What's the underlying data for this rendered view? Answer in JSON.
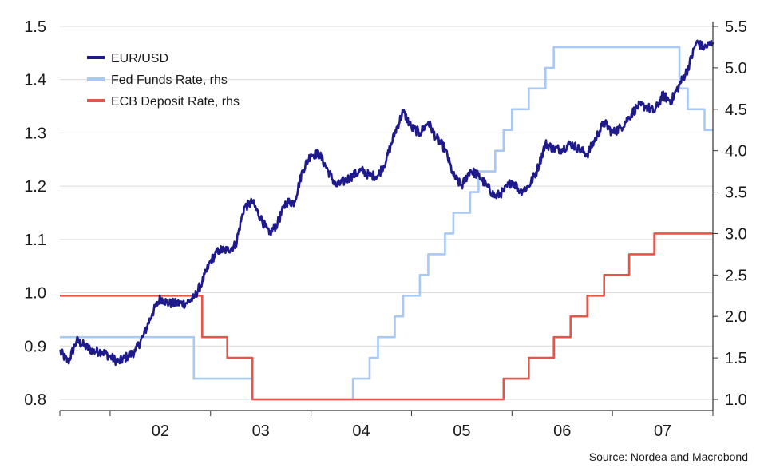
{
  "chart_data": {
    "type": "line",
    "source": "Source: Nordea and Macrobond",
    "x_axis": {
      "tick_labels": [
        "02",
        "03",
        "04",
        "05",
        "06",
        "07"
      ],
      "range_years": [
        2001.5,
        2008.0
      ]
    },
    "y_axis_left": {
      "ylim": [
        0.8,
        1.5
      ],
      "tick_labels": [
        "0.8",
        "0.9",
        "1.0",
        "1.1",
        "1.2",
        "1.3",
        "1.4",
        "1.5"
      ]
    },
    "y_axis_right": {
      "ylim": [
        1.0,
        5.5
      ],
      "tick_labels": [
        "1.0",
        "1.5",
        "2.0",
        "2.5",
        "3.0",
        "3.5",
        "4.0",
        "4.5",
        "5.0",
        "5.5"
      ]
    },
    "grid": "horizontal",
    "legend_position": "top-left",
    "series": [
      {
        "name": "EUR/USD",
        "axis": "left",
        "color": "#1f1a8c",
        "points": [
          [
            "2001-07",
            0.89
          ],
          [
            "2001-08",
            0.87
          ],
          [
            "2001-09",
            0.91
          ],
          [
            "2001-10",
            0.9
          ],
          [
            "2001-11",
            0.89
          ],
          [
            "2001-12",
            0.89
          ],
          [
            "2002-01",
            0.88
          ],
          [
            "2002-02",
            0.87
          ],
          [
            "2002-03",
            0.88
          ],
          [
            "2002-04",
            0.89
          ],
          [
            "2002-05",
            0.92
          ],
          [
            "2002-06",
            0.96
          ],
          [
            "2002-07",
            0.99
          ],
          [
            "2002-08",
            0.98
          ],
          [
            "2002-09",
            0.98
          ],
          [
            "2002-10",
            0.98
          ],
          [
            "2002-11",
            0.99
          ],
          [
            "2002-12",
            1.02
          ],
          [
            "2003-01",
            1.06
          ],
          [
            "2003-02",
            1.08
          ],
          [
            "2003-03",
            1.08
          ],
          [
            "2003-04",
            1.09
          ],
          [
            "2003-05",
            1.16
          ],
          [
            "2003-06",
            1.17
          ],
          [
            "2003-07",
            1.14
          ],
          [
            "2003-08",
            1.11
          ],
          [
            "2003-09",
            1.13
          ],
          [
            "2003-10",
            1.17
          ],
          [
            "2003-11",
            1.17
          ],
          [
            "2003-12",
            1.23
          ],
          [
            "2004-01",
            1.26
          ],
          [
            "2004-02",
            1.26
          ],
          [
            "2004-03",
            1.23
          ],
          [
            "2004-04",
            1.2
          ],
          [
            "2004-05",
            1.21
          ],
          [
            "2004-06",
            1.22
          ],
          [
            "2004-07",
            1.23
          ],
          [
            "2004-08",
            1.22
          ],
          [
            "2004-09",
            1.22
          ],
          [
            "2004-10",
            1.25
          ],
          [
            "2004-11",
            1.3
          ],
          [
            "2004-12",
            1.34
          ],
          [
            "2005-01",
            1.31
          ],
          [
            "2005-02",
            1.3
          ],
          [
            "2005-03",
            1.32
          ],
          [
            "2005-04",
            1.29
          ],
          [
            "2005-05",
            1.27
          ],
          [
            "2005-06",
            1.22
          ],
          [
            "2005-07",
            1.2
          ],
          [
            "2005-08",
            1.23
          ],
          [
            "2005-09",
            1.22
          ],
          [
            "2005-10",
            1.2
          ],
          [
            "2005-11",
            1.18
          ],
          [
            "2005-12",
            1.19
          ],
          [
            "2006-01",
            1.21
          ],
          [
            "2006-02",
            1.19
          ],
          [
            "2006-03",
            1.2
          ],
          [
            "2006-04",
            1.23
          ],
          [
            "2006-05",
            1.28
          ],
          [
            "2006-06",
            1.27
          ],
          [
            "2006-07",
            1.27
          ],
          [
            "2006-08",
            1.28
          ],
          [
            "2006-09",
            1.27
          ],
          [
            "2006-10",
            1.26
          ],
          [
            "2006-11",
            1.29
          ],
          [
            "2006-12",
            1.32
          ],
          [
            "2007-01",
            1.3
          ],
          [
            "2007-02",
            1.31
          ],
          [
            "2007-03",
            1.33
          ],
          [
            "2007-04",
            1.35
          ],
          [
            "2007-05",
            1.35
          ],
          [
            "2007-06",
            1.34
          ],
          [
            "2007-07",
            1.37
          ],
          [
            "2007-08",
            1.36
          ],
          [
            "2007-09",
            1.39
          ],
          [
            "2007-10",
            1.42
          ],
          [
            "2007-11",
            1.47
          ],
          [
            "2007-12",
            1.46
          ],
          [
            "2008-01",
            1.47
          ]
        ]
      },
      {
        "name": "Fed Funds Rate, rhs",
        "axis": "right",
        "color": "#a8c8f5",
        "step_points": [
          [
            "2001-07",
            1.75
          ],
          [
            "2002-11",
            1.25
          ],
          [
            "2003-06",
            1.0
          ],
          [
            "2004-06",
            1.25
          ],
          [
            "2004-08",
            1.5
          ],
          [
            "2004-09",
            1.75
          ],
          [
            "2004-11",
            2.0
          ],
          [
            "2004-12",
            2.25
          ],
          [
            "2005-02",
            2.5
          ],
          [
            "2005-03",
            2.75
          ],
          [
            "2005-05",
            3.0
          ],
          [
            "2005-06",
            3.25
          ],
          [
            "2005-08",
            3.5
          ],
          [
            "2005-09",
            3.75
          ],
          [
            "2005-11",
            4.0
          ],
          [
            "2005-12",
            4.25
          ],
          [
            "2006-01",
            4.5
          ],
          [
            "2006-03",
            4.75
          ],
          [
            "2006-05",
            5.0
          ],
          [
            "2006-06",
            5.25
          ],
          [
            "2007-09",
            4.75
          ],
          [
            "2007-10",
            4.5
          ],
          [
            "2007-12",
            4.25
          ],
          [
            "2008-01",
            4.25
          ]
        ]
      },
      {
        "name": "ECB Deposit Rate, rhs",
        "axis": "right",
        "color": "#e8534a",
        "step_points": [
          [
            "2001-07",
            2.25
          ],
          [
            "2002-12",
            1.75
          ],
          [
            "2003-03",
            1.5
          ],
          [
            "2003-06",
            1.0
          ],
          [
            "2005-12",
            1.25
          ],
          [
            "2006-03",
            1.5
          ],
          [
            "2006-06",
            1.75
          ],
          [
            "2006-08",
            2.0
          ],
          [
            "2006-10",
            2.25
          ],
          [
            "2006-12",
            2.5
          ],
          [
            "2007-03",
            2.75
          ],
          [
            "2007-06",
            3.0
          ],
          [
            "2008-01",
            3.0
          ]
        ]
      }
    ]
  }
}
